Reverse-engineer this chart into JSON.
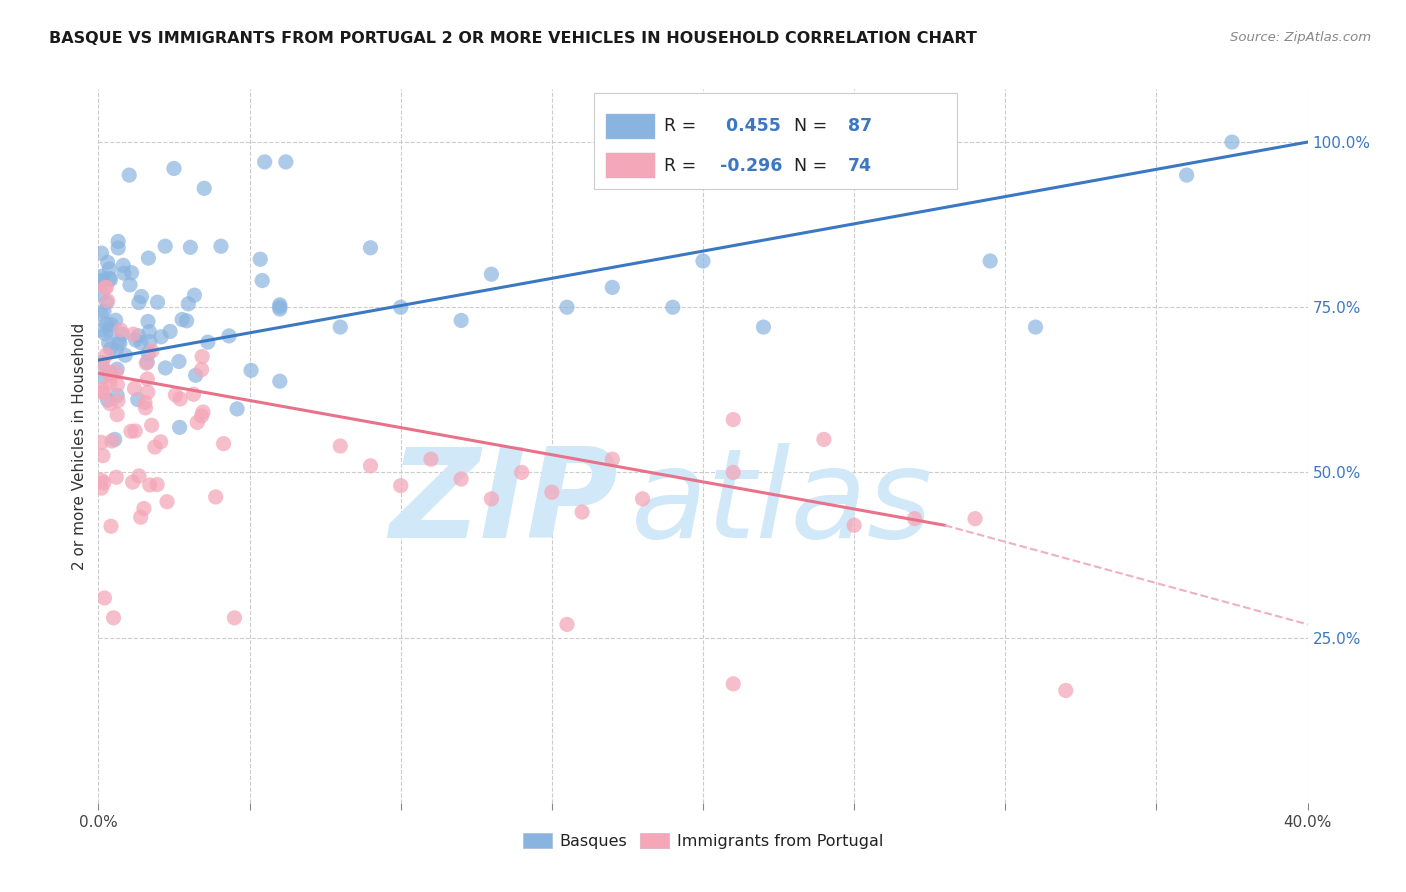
{
  "title": "BASQUE VS IMMIGRANTS FROM PORTUGAL 2 OR MORE VEHICLES IN HOUSEHOLD CORRELATION CHART",
  "source": "Source: ZipAtlas.com",
  "ylabel": "2 or more Vehicles in Household",
  "xlim": [
    0.0,
    0.4
  ],
  "ylim": [
    0.0,
    1.08
  ],
  "xtick_positions": [
    0.0,
    0.05,
    0.1,
    0.15,
    0.2,
    0.25,
    0.3,
    0.35,
    0.4
  ],
  "xticklabels": [
    "0.0%",
    "",
    "",
    "",
    "",
    "",
    "",
    "",
    "40.0%"
  ],
  "yticks_right": [
    0.25,
    0.5,
    0.75,
    1.0
  ],
  "ytick_right_labels": [
    "25.0%",
    "50.0%",
    "75.0%",
    "100.0%"
  ],
  "blue_R": 0.455,
  "blue_N": 87,
  "pink_R": -0.296,
  "pink_N": 74,
  "blue_color": "#8ab4e0",
  "pink_color": "#f4a7b9",
  "blue_line_color": "#3b78c4",
  "pink_line_color": "#e8728a",
  "pink_dash_color": "#f0b0c0",
  "legend_labels": [
    "Basques",
    "Immigrants from Portugal"
  ],
  "blue_R_label_color": "#3b78c4",
  "pink_R_label_color": "#3b78c4",
  "right_axis_color": "#3b78c4",
  "watermark_zip_color": "#d0e8f8",
  "watermark_atlas_color": "#d0e8f8"
}
